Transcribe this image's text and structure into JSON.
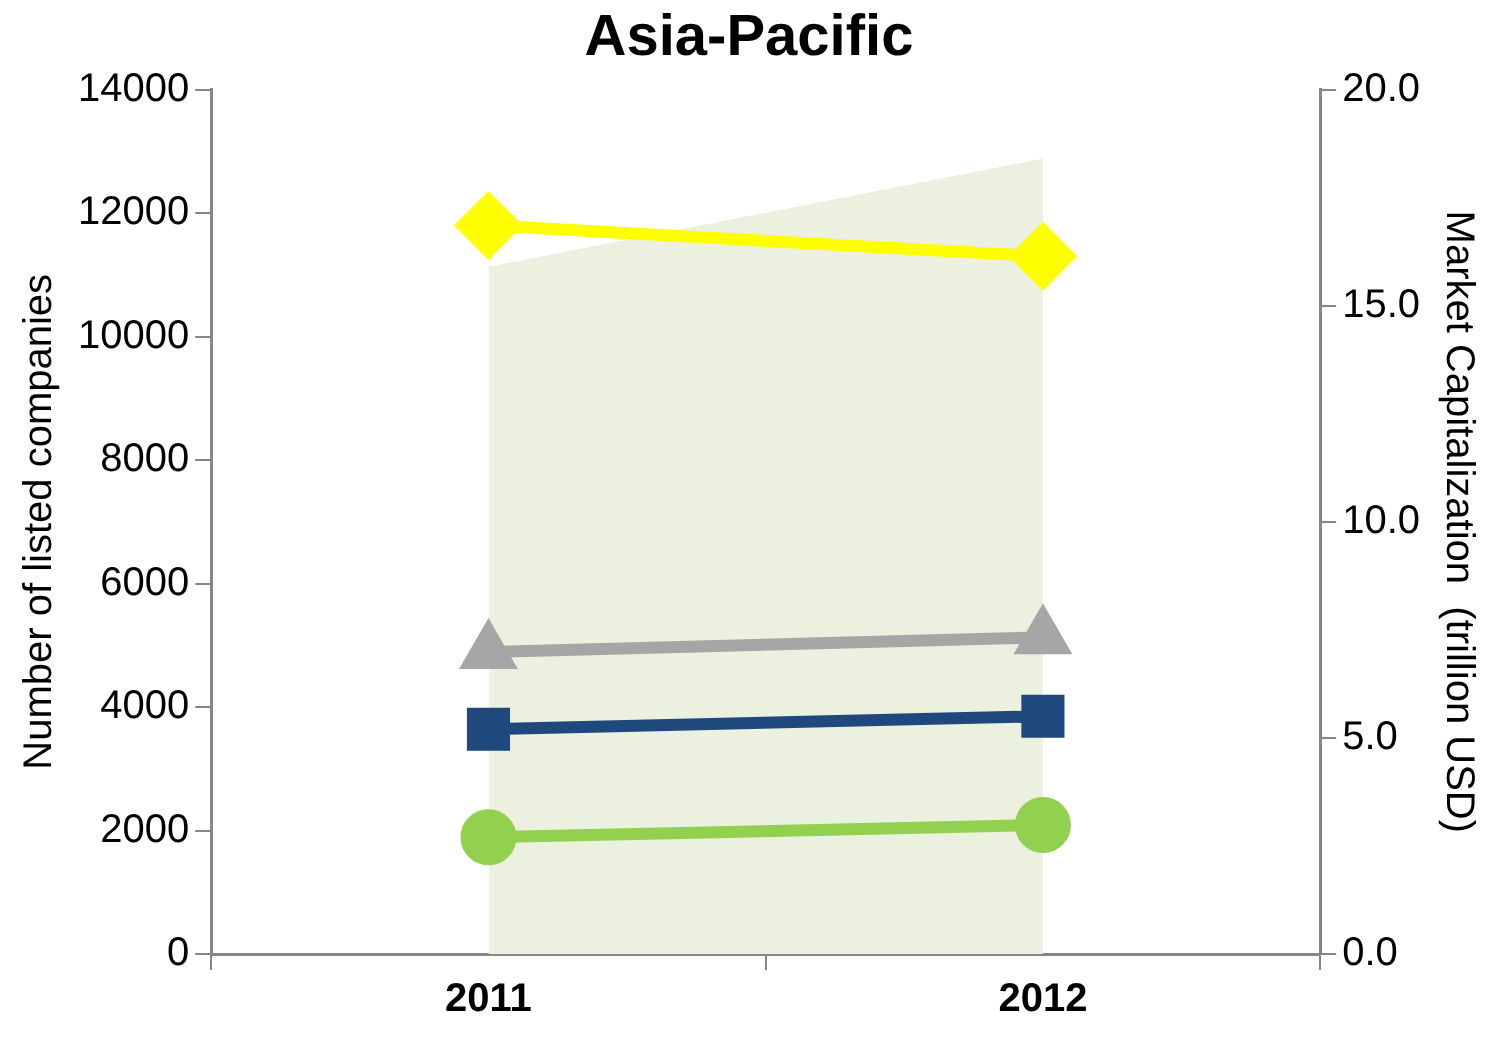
{
  "chart_data": {
    "type": "line",
    "title": "Asia-Pacific",
    "ylabel": "Number of listed companies",
    "y2label": "Market Capitalization  (trillion USD)",
    "categories": [
      "2011",
      "2012"
    ],
    "series": [
      {
        "type": "area",
        "axis": "y2",
        "color": "#ebf0df",
        "values": [
          15.9,
          18.4
        ]
      },
      {
        "color": "#ffff00",
        "marker": "diamond",
        "values": [
          11800,
          11300
        ]
      },
      {
        "color": "#a6a6a6",
        "marker": "triangle",
        "values": [
          4890,
          5130
        ]
      },
      {
        "color": "#1f497d",
        "marker": "square",
        "values": [
          3640,
          3850
        ]
      },
      {
        "color": "#92d050",
        "marker": "circle",
        "values": [
          1890,
          2090
        ]
      }
    ],
    "ylim": [
      0,
      14000
    ],
    "yticks": [
      0,
      2000,
      4000,
      6000,
      8000,
      10000,
      12000,
      14000
    ],
    "y2lim": [
      0,
      20
    ],
    "y2ticks": [
      {
        "value": 0,
        "label": "0.0"
      },
      {
        "value": 5,
        "label": "5.0"
      },
      {
        "value": 10,
        "label": "10.0"
      },
      {
        "value": 15,
        "label": "15.0"
      },
      {
        "value": 20,
        "label": "20.0"
      }
    ],
    "grid": false,
    "legend": false
  }
}
